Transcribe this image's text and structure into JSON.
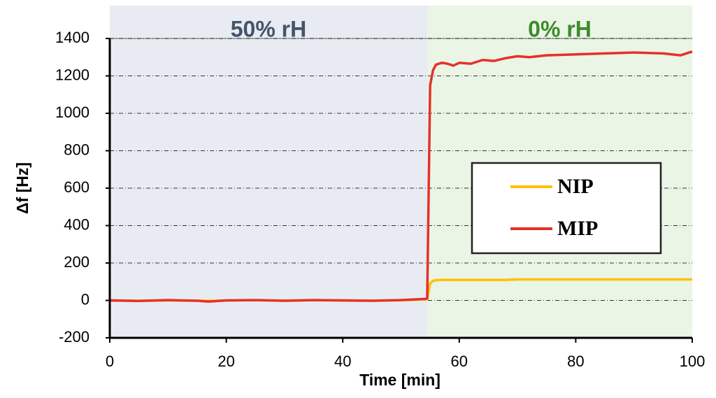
{
  "chart_data": {
    "type": "line",
    "xlabel": "Time [min]",
    "ylabel": "Δf [Hz]",
    "x": [
      0,
      5,
      10,
      15,
      17,
      20,
      25,
      30,
      35,
      40,
      45,
      50,
      54,
      54.5,
      55,
      55.5,
      56,
      57,
      58,
      59,
      60,
      62,
      64,
      66,
      68,
      70,
      72,
      75,
      80,
      85,
      90,
      95,
      98,
      100
    ],
    "series": [
      {
        "name": "NIP",
        "color": "#ffc000",
        "values": [
          0,
          -2,
          0,
          -1,
          -3,
          0,
          1,
          -1,
          1,
          0,
          -1,
          1,
          5,
          8,
          90,
          105,
          108,
          110,
          110,
          110,
          110,
          110,
          110,
          110,
          110,
          112,
          112,
          112,
          112,
          112,
          112,
          112,
          112,
          112
        ]
      },
      {
        "name": "MIP",
        "color": "#e5312a",
        "values": [
          0,
          -3,
          2,
          -2,
          -6,
          0,
          2,
          -2,
          2,
          0,
          -2,
          2,
          8,
          10,
          1150,
          1230,
          1260,
          1270,
          1265,
          1255,
          1270,
          1265,
          1285,
          1280,
          1295,
          1305,
          1300,
          1310,
          1315,
          1320,
          1325,
          1320,
          1310,
          1330
        ]
      }
    ],
    "regions": [
      {
        "label": "50% rH",
        "start": 0,
        "end": 54.5,
        "color": "#e8ecf2",
        "label_color": "#44546a"
      },
      {
        "label": "0% rH",
        "start": 54.5,
        "end": 100,
        "color": "#eaf5e6",
        "label_color": "#3d8b2c"
      }
    ],
    "xlim": [
      0,
      100
    ],
    "xticks": [
      0,
      20,
      40,
      60,
      80,
      100
    ],
    "ylim": [
      -200,
      1400
    ],
    "yticks": [
      -200,
      0,
      200,
      400,
      600,
      800,
      1000,
      1200,
      1400
    ],
    "grid": true,
    "legend": "right"
  }
}
